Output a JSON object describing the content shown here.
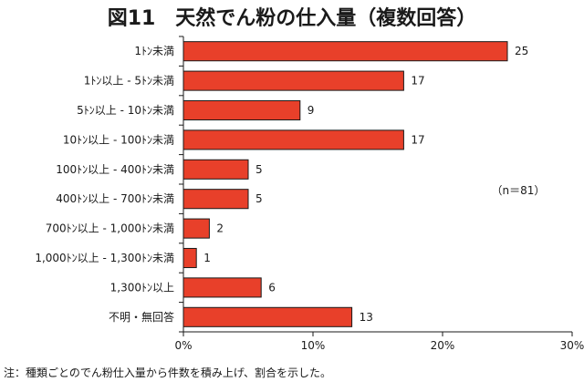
{
  "chart_data": {
    "type": "bar",
    "orientation": "horizontal",
    "title": "図11　天然でん粉の仕入量（複数回答）",
    "categories": [
      "1ﾄﾝ未満",
      "1ﾄﾝ以上 - 5ﾄﾝ未満",
      "5ﾄﾝ以上 - 10ﾄﾝ未満",
      "10ﾄﾝ以上 - 100ﾄﾝ未満",
      "100ﾄﾝ以上 - 400ﾄﾝ未満",
      "400ﾄﾝ以上 - 700ﾄﾝ未満",
      "700ﾄﾝ以上 - 1,000ﾄﾝ未満",
      "1,000ﾄﾝ以上 - 1,300ﾄﾝ未満",
      "1,300ﾄﾝ以上",
      "不明・無回答"
    ],
    "values": [
      25,
      17,
      9,
      17,
      5,
      5,
      2,
      1,
      6,
      13
    ],
    "value_labels": [
      "25",
      "17",
      "9",
      "17",
      "5",
      "5",
      "2",
      "1",
      "6",
      "13"
    ],
    "xlim": [
      0,
      30
    ],
    "xticks": [
      0,
      10,
      20,
      30
    ],
    "xtick_labels": [
      "0%",
      "10%",
      "20%",
      "30%"
    ],
    "xlabel": "",
    "ylabel": "",
    "grid": false,
    "bar_color": "#e8402a",
    "bar_edge_color": "#1a1a1a",
    "annotation": "（n＝81）",
    "footnote": "注：種類ごとのでん粉仕入量から件数を積み上げ、割合を示した。"
  }
}
